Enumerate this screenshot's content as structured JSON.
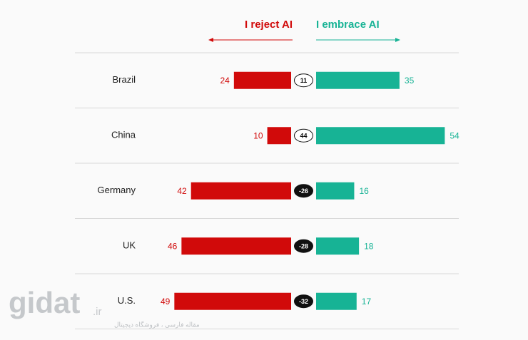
{
  "chart_data": {
    "type": "diverging_bar",
    "categories": [
      "Brazil",
      "China",
      "Germany",
      "UK",
      "U.S."
    ],
    "series": [
      {
        "name": "I reject AI",
        "color": "#d10a0a",
        "values": [
          24,
          10,
          42,
          46,
          49
        ]
      },
      {
        "name": "I embrace AI",
        "color": "#17b395",
        "values": [
          35,
          54,
          16,
          18,
          17
        ]
      }
    ],
    "differences": [
      11,
      44,
      -26,
      -28,
      -32
    ]
  },
  "watermark": {
    "logo": "gidat",
    "domain": ".ir",
    "tagline": "مقاله فارسی ، فروشگاه دیجیتال"
  }
}
